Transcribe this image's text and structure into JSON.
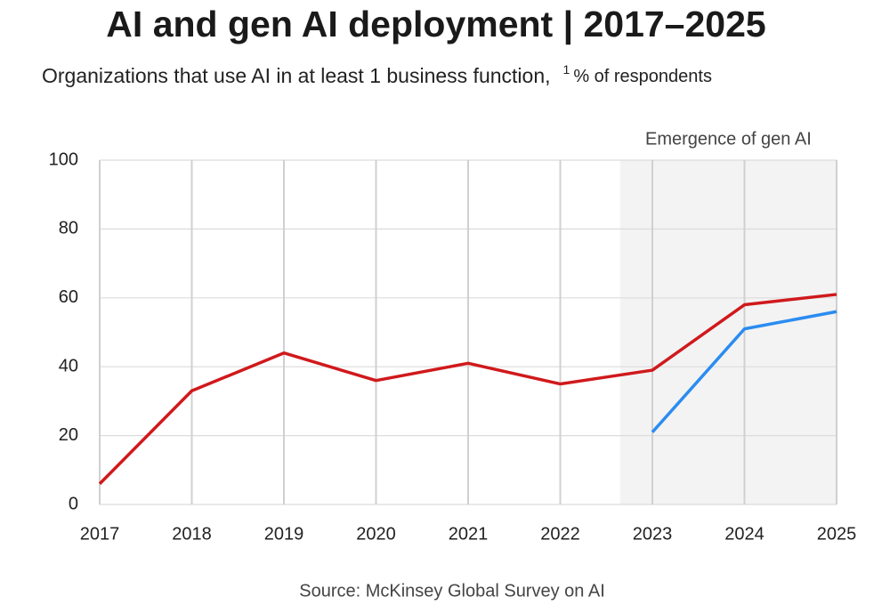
{
  "chart_data": {
    "type": "line",
    "title": "AI and gen AI deployment | 2017–2025",
    "subtitle": "Organizations that use AI in at least 1 business function,",
    "footnote_marker": "1",
    "unit": "% of respondents",
    "source": "Source: McKinsey Global Survey on AI",
    "x": [
      2017,
      2018,
      2019,
      2020,
      2021,
      2022,
      2023,
      2024,
      2025
    ],
    "xlim": [
      2017,
      2025
    ],
    "xticks": [
      2017,
      2018,
      2019,
      2020,
      2021,
      2022,
      2023,
      2024,
      2025
    ],
    "ylim": [
      0,
      100
    ],
    "yticks": [
      0,
      20,
      40,
      60,
      80,
      100
    ],
    "grid": true,
    "highlight": {
      "label": "Emergence of gen AI",
      "xrange": [
        2022.65,
        2025
      ],
      "color": "#f3f3f3"
    },
    "series": [
      {
        "color": "#d0191c",
        "values": [
          6,
          33,
          44,
          36,
          41,
          35,
          39,
          58,
          61
        ]
      },
      {
        "color": "#2b8cf0",
        "values": [
          null,
          null,
          null,
          null,
          null,
          null,
          21,
          51,
          56
        ]
      }
    ]
  }
}
